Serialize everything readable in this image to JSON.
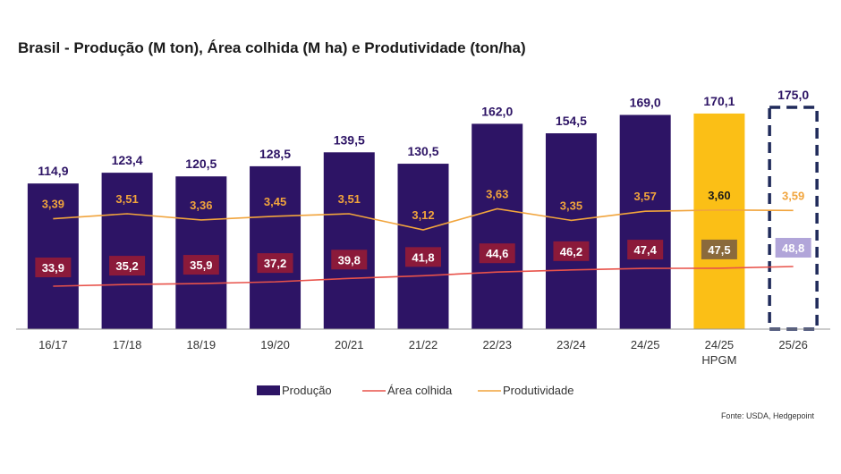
{
  "chart_data": {
    "type": "bar",
    "title": "Brasil - Produção (M ton), Área colhida (M ha) e Produtividade (ton/ha)",
    "categories": [
      "16/17",
      "17/18",
      "18/19",
      "19/20",
      "20/21",
      "21/22",
      "22/23",
      "23/24",
      "24/25",
      "24/25\nHPGM",
      "25/26"
    ],
    "series": [
      {
        "name": "Produção",
        "type": "bar",
        "values": [
          114.9,
          123.4,
          120.5,
          128.5,
          139.5,
          130.5,
          162.0,
          154.5,
          169.0,
          170.1,
          175.0
        ],
        "labels": [
          "114,9",
          "123,4",
          "120,5",
          "128,5",
          "139,5",
          "130,5",
          "162,0",
          "154,5",
          "169,0",
          "170,1",
          "175,0"
        ]
      },
      {
        "name": "Área colhida",
        "type": "line",
        "values": [
          33.9,
          35.2,
          35.9,
          37.2,
          39.8,
          41.8,
          44.6,
          46.2,
          47.4,
          47.5,
          48.8
        ],
        "labels": [
          "33,9",
          "35,2",
          "35,9",
          "37,2",
          "39,8",
          "41,8",
          "44,6",
          "46,2",
          "47,4",
          "47,5",
          "48,8"
        ]
      },
      {
        "name": "Produtividade",
        "type": "line",
        "values": [
          3.39,
          3.51,
          3.36,
          3.45,
          3.51,
          3.12,
          3.63,
          3.35,
          3.57,
          3.6,
          3.59
        ],
        "labels": [
          "3,39",
          "3,51",
          "3,36",
          "3,45",
          "3,51",
          "3,12",
          "3,63",
          "3,35",
          "3,57",
          "3,60",
          "3,59"
        ]
      }
    ],
    "legend": [
      "Produção",
      "Área colhida",
      "Produtividade"
    ],
    "legend_position": "bottom",
    "grid": false,
    "ylim": [
      0,
      180
    ],
    "colors": {
      "bar": "#2d1465",
      "bar_hpgm": "#fbbf16",
      "bar_projection_border": "#1f2a5a",
      "area_line": "#e8524a",
      "area_label_bg": "#8b1a3a",
      "area_label_bg_hpgm": "#8a6a3c",
      "area_label_bg_proj": "#b1a5d9",
      "prod_line": "#f1a43c",
      "prod_label": "#f1a43c",
      "value_label": "#2d1465"
    },
    "source": "Fonte: USDA, Hedgepoint"
  }
}
